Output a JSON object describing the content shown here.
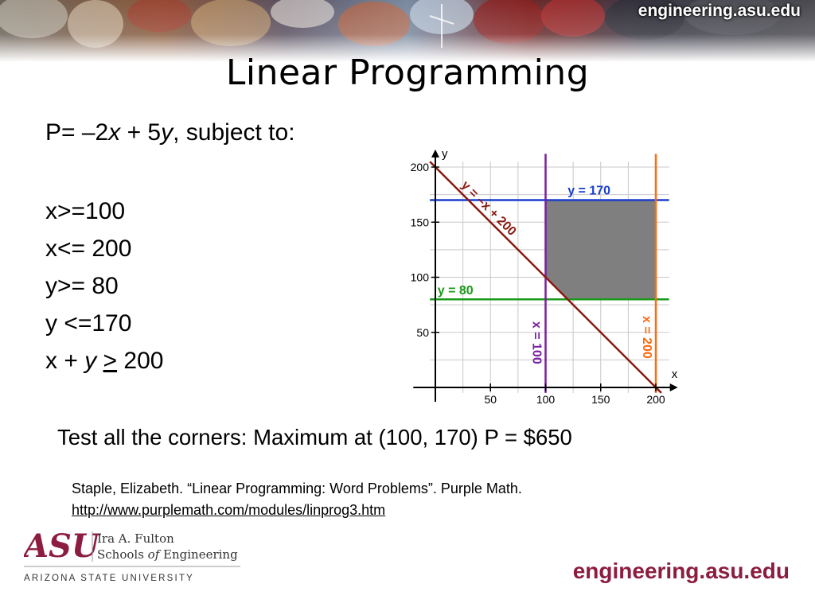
{
  "header": {
    "site": "engineering.asu.edu"
  },
  "slide": {
    "title": "Linear Programming",
    "objective": {
      "prefix": "P= –2",
      "var1": "x",
      "mid": " + 5",
      "var2": "y",
      "suffix": ", subject  to:"
    },
    "constraints": {
      "c1": "x>=100",
      "c2": "x<= 200",
      "c3": "y>= 80",
      "c4": "y <=170",
      "c5_prefix": "x + ",
      "c5_var": "y",
      "c5_op": ">",
      "c5_suffix": " 200"
    },
    "conclusion": "Test all the corners:  Maximum at (100, 170) P = $650",
    "citation": {
      "text": "Staple, Elizabeth.  “Linear Programming: Word Problems”. Purple Math.",
      "link": "http://www.purplemath.com/modules/linprog3.htm"
    }
  },
  "chart_data": {
    "type": "line",
    "xlabel": "x",
    "ylabel": "y",
    "xlim": [
      0,
      215
    ],
    "ylim": [
      0,
      210
    ],
    "x_ticks": [
      "50",
      "100",
      "150",
      "200"
    ],
    "y_ticks": [
      "50",
      "100",
      "150",
      "200"
    ],
    "grid": true,
    "lines": [
      {
        "label": "y = 170",
        "kind": "horizontal",
        "y": 170,
        "color": "#1a3fcf"
      },
      {
        "label": "y = 80",
        "kind": "horizontal",
        "y": 80,
        "color": "#1a9a1a"
      },
      {
        "label": "x = 100",
        "kind": "vertical",
        "x": 100,
        "color": "#7a1fa0"
      },
      {
        "label": "x = 200",
        "kind": "vertical",
        "x": 200,
        "color": "#ff6a10"
      },
      {
        "label": "y = –x + 200",
        "kind": "diagonal",
        "from": [
          -5,
          205
        ],
        "to": [
          205,
          -5
        ],
        "color": "#8a1a10"
      }
    ],
    "feasible_region": [
      [
        100,
        100
      ],
      [
        120,
        80
      ],
      [
        200,
        80
      ],
      [
        200,
        170
      ],
      [
        100,
        170
      ]
    ],
    "region_color": "#7f7f7f"
  },
  "footer": {
    "logo_letters": "ASU",
    "logo_line1": "Ira A. Fulton",
    "logo_line2_a": "Schools ",
    "logo_line2_of": "of",
    "logo_line2_b": " Engineering",
    "university": "ARIZONA  STATE  UNIVERSITY",
    "site": "engineering.asu.edu"
  },
  "colors": {
    "asu_maroon": "#8c1d40"
  }
}
